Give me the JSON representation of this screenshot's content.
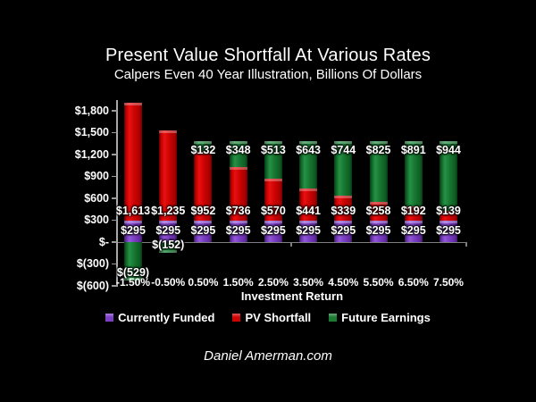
{
  "page": {
    "background": "#000000",
    "footer": "Daniel Amerman.com"
  },
  "chart_data": {
    "type": "bar",
    "stacked": true,
    "title": "Present Value Shortfall At Various Rates",
    "subtitle": "Calpers Even 40 Year Illustration, Billions Of Dollars",
    "xlabel": "Investment Return",
    "categories": [
      "-1.50%",
      "-0.50%",
      "0.50%",
      "1.50%",
      "2.50%",
      "3.50%",
      "4.50%",
      "5.50%",
      "6.50%",
      "7.50%"
    ],
    "series": [
      {
        "name": "Currently Funded",
        "color": "#7C3FC4",
        "values": [
          295,
          295,
          295,
          295,
          295,
          295,
          295,
          295,
          295,
          295
        ],
        "labels": [
          "$295",
          "$295",
          "$295",
          "$295",
          "$295",
          "$295",
          "$295",
          "$295",
          "$295",
          "$295"
        ]
      },
      {
        "name": "PV Shortfall",
        "color": "#CE0404",
        "values": [
          1613,
          1235,
          952,
          736,
          570,
          441,
          339,
          258,
          192,
          139
        ],
        "labels": [
          "$1,613",
          "$1,235",
          "$952",
          "$736",
          "$570",
          "$441",
          "$339",
          "$258",
          "$192",
          "$139"
        ]
      },
      {
        "name": "Future Earnings",
        "color": "#1B7B33",
        "values": [
          -529,
          -152,
          132,
          348,
          513,
          643,
          744,
          825,
          891,
          944
        ],
        "labels": [
          "$(529)",
          "$(152)",
          "$132",
          "$348",
          "$513",
          "$643",
          "$744",
          "$825",
          "$891",
          "$944"
        ]
      }
    ],
    "y_axis": {
      "tick_labels": [
        "$1,800",
        "$1,500",
        "$1,200",
        "$900",
        "$600",
        "$300",
        "$-",
        "$(300)",
        "$(600)"
      ],
      "tick_values": [
        1800,
        1500,
        1200,
        900,
        600,
        300,
        0,
        -300,
        -600
      ],
      "ylim": [
        -600,
        1908
      ]
    },
    "legend_position": "bottom",
    "grid": false
  }
}
